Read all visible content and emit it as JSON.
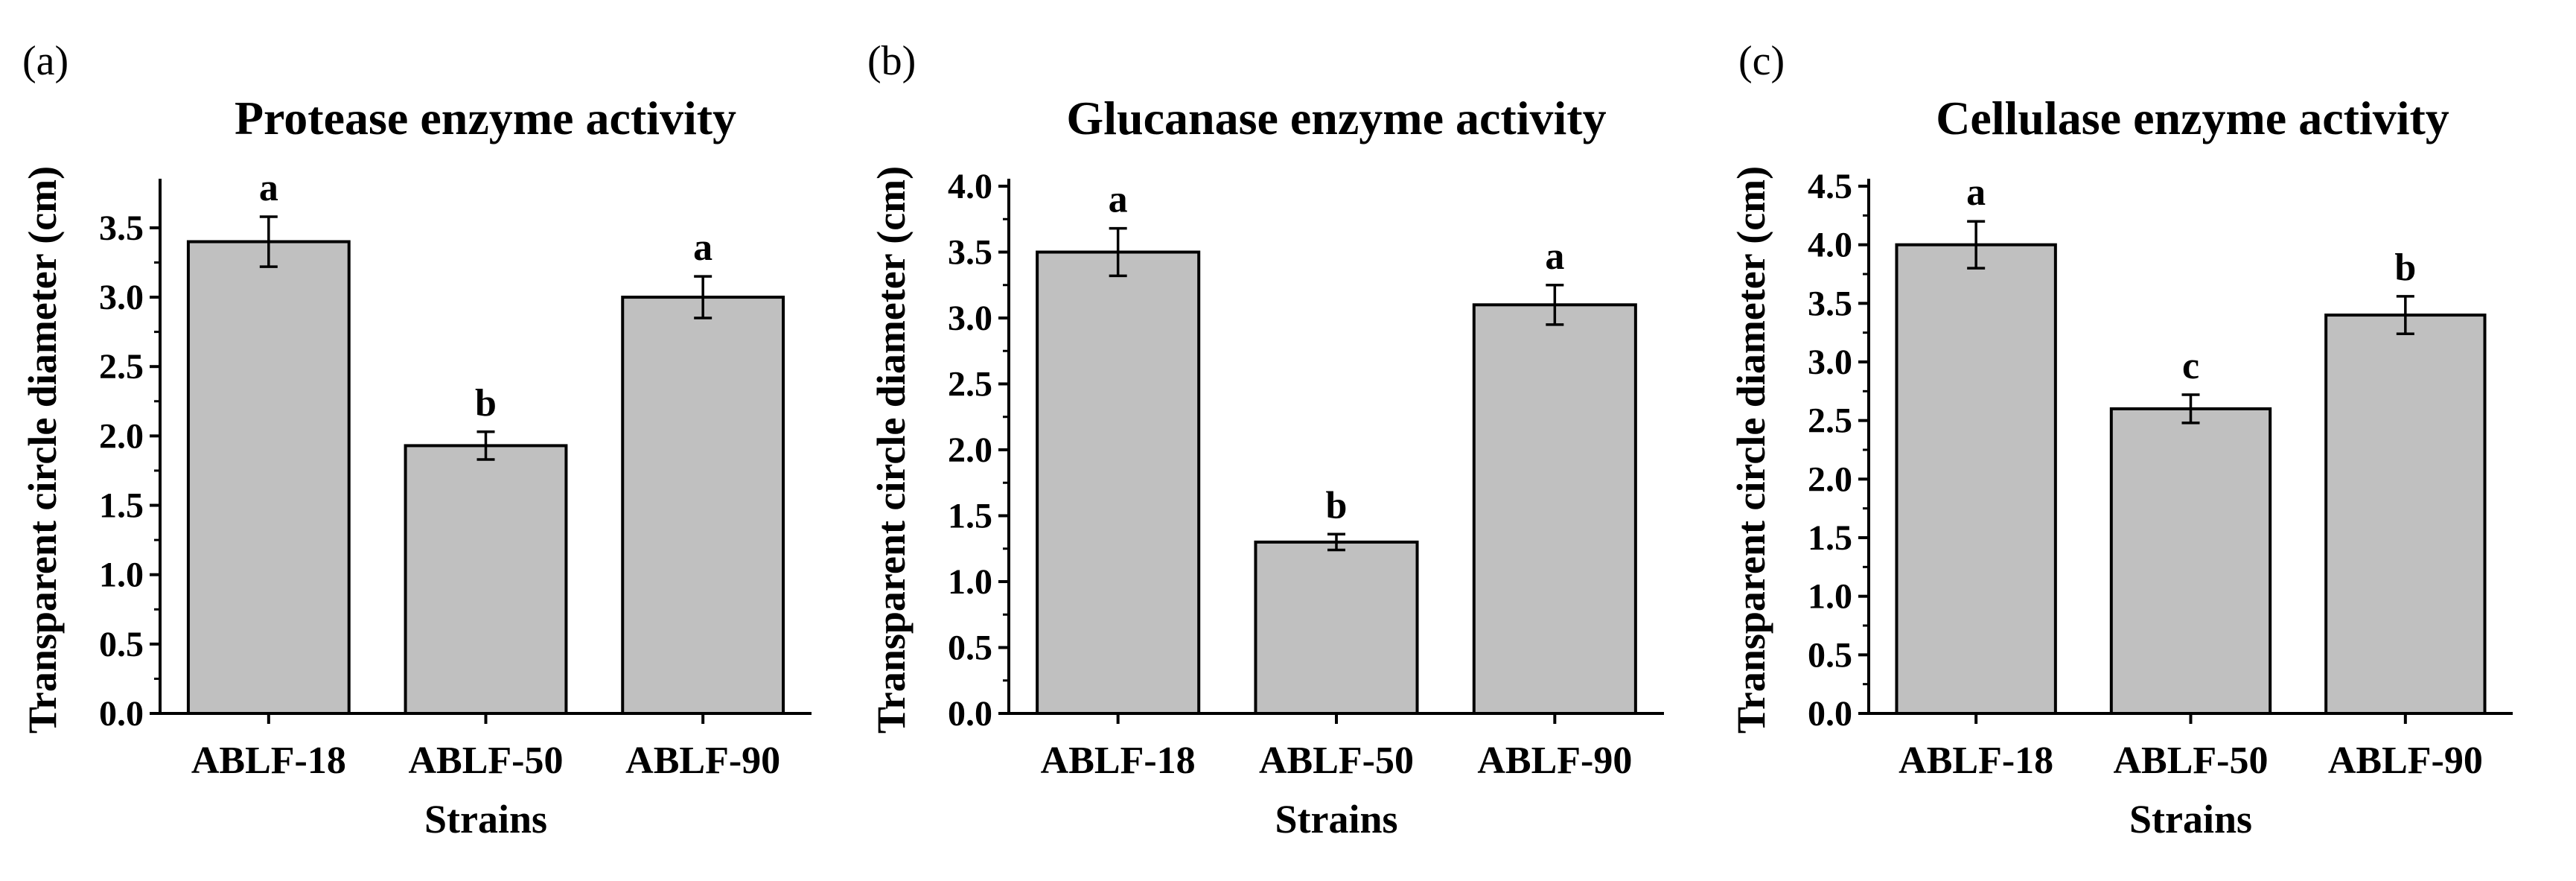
{
  "chart_data": [
    {
      "type": "bar",
      "panel": "(a)",
      "title": "Protease enzyme activity",
      "xlabel": "Strains",
      "ylabel": "Transparent circle diameter  (cm)",
      "categories": [
        "ABLF-18",
        "ABLF-50",
        "ABLF-90"
      ],
      "values": [
        3.4,
        1.93,
        3.0
      ],
      "errors": [
        0.18,
        0.1,
        0.15
      ],
      "significance": [
        "a",
        "b",
        "a"
      ],
      "ylim": [
        0,
        3.8
      ],
      "yticks": [
        "0.0",
        "0.5",
        "1.0",
        "1.5",
        "2.0",
        "2.5",
        "3.0",
        "3.5"
      ],
      "bar_color": "#c0c0c0",
      "grid": false
    },
    {
      "type": "bar",
      "panel": "(b)",
      "title": "Glucanase enzyme activity",
      "xlabel": "Strains",
      "ylabel": "Transparent circle diameter  (cm)",
      "categories": [
        "ABLF-18",
        "ABLF-50",
        "ABLF-90"
      ],
      "values": [
        3.5,
        1.3,
        3.1
      ],
      "errors": [
        0.18,
        0.06,
        0.15
      ],
      "significance": [
        "a",
        "b",
        "a"
      ],
      "ylim": [
        0,
        4.0
      ],
      "yticks": [
        "0.0",
        "0.5",
        "1.0",
        "1.5",
        "2.0",
        "2.5",
        "3.0",
        "3.5",
        "4.0"
      ],
      "bar_color": "#c0c0c0",
      "grid": false
    },
    {
      "type": "bar",
      "panel": "(c)",
      "title": "Cellulase enzyme activity",
      "xlabel": "Strains",
      "ylabel": "Transparent circle diameter  (cm)",
      "categories": [
        "ABLF-18",
        "ABLF-50",
        "ABLF-90"
      ],
      "values": [
        4.0,
        2.6,
        3.4
      ],
      "errors": [
        0.2,
        0.12,
        0.16
      ],
      "significance": [
        "a",
        "c",
        "b"
      ],
      "ylim": [
        0,
        4.5
      ],
      "yticks": [
        "0.0",
        "0.5",
        "1.0",
        "1.5",
        "2.0",
        "2.5",
        "3.0",
        "3.5",
        "4.0",
        "4.5"
      ],
      "bar_color": "#c0c0c0",
      "grid": false
    }
  ]
}
